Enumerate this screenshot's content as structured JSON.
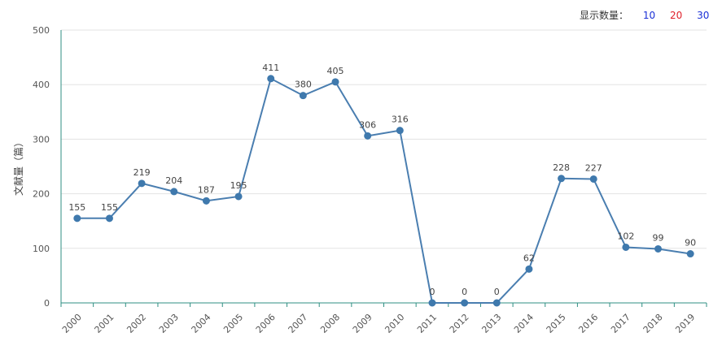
{
  "controls": {
    "label": "显示数量：",
    "options": [
      {
        "label": "10",
        "color": "#1a2fd6"
      },
      {
        "label": "20",
        "color": "#e0202a"
      },
      {
        "label": "30",
        "color": "#1a2fd6"
      }
    ]
  },
  "colors": {
    "line": "#4a7eb0",
    "point": "#3f79ad",
    "axis": "#2f8f83",
    "grid": "#e3e3e3"
  },
  "chart_data": {
    "type": "line",
    "title": "",
    "xlabel": "",
    "ylabel": "文献量（篇）",
    "ylim": [
      0,
      500
    ],
    "yticks": [
      0,
      100,
      200,
      300,
      400,
      500
    ],
    "grid": true,
    "x": [
      "2000",
      "2001",
      "2002",
      "2003",
      "2004",
      "2005",
      "2006",
      "2007",
      "2008",
      "2009",
      "2010",
      "2011",
      "2012",
      "2013",
      "2014",
      "2015",
      "2016",
      "2017",
      "2018",
      "2019"
    ],
    "series": [
      {
        "values": [
          155,
          155,
          219,
          204,
          187,
          195,
          411,
          380,
          405,
          306,
          316,
          0,
          0,
          0,
          62,
          228,
          227,
          102,
          99,
          90
        ]
      }
    ]
  }
}
